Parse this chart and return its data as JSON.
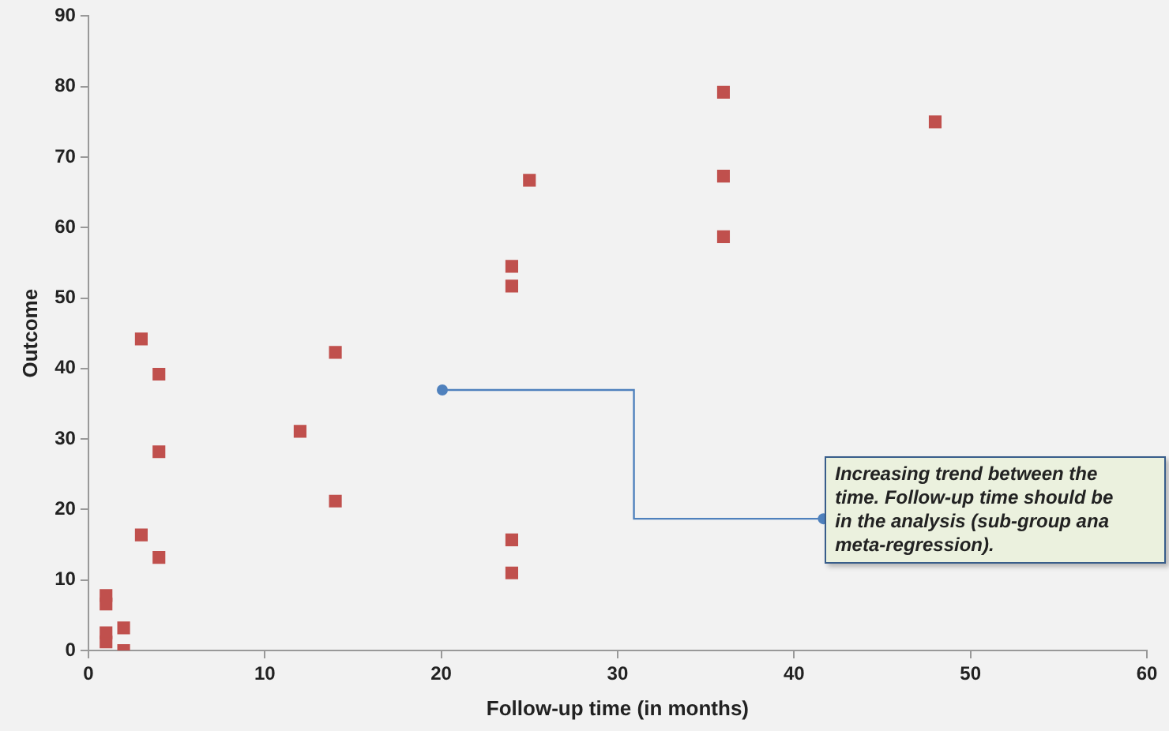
{
  "chart_data": {
    "type": "scatter",
    "xlabel": "Follow-up time (in months)",
    "ylabel": "Outcome",
    "x": [
      1,
      1,
      1,
      1,
      2,
      2,
      3,
      3,
      4,
      4,
      4,
      12,
      14,
      14,
      24,
      24,
      24,
      24,
      25,
      36,
      36,
      36,
      48
    ],
    "series": [
      {
        "color": "#c0504d",
        "values": [
          7.8,
          6.6,
          2.5,
          1.2,
          3.2,
          0,
          44.2,
          16.4,
          39.2,
          28.2,
          13.2,
          31.1,
          42.3,
          21.2,
          54.5,
          51.7,
          15.7,
          11,
          66.7,
          79.2,
          67.3,
          58.7,
          75
        ]
      }
    ],
    "xlim": [
      0,
      60
    ],
    "xticks": [
      0,
      10,
      20,
      30,
      40,
      50,
      60
    ],
    "ylim": [
      0,
      90
    ],
    "yticks": [
      0,
      10,
      20,
      30,
      40,
      50,
      60,
      70,
      80,
      90
    ],
    "grid": false,
    "legend": false,
    "marker": "square",
    "annotations": [
      "Increasing trend between the\ntime. Follow-up time should be\nin the analysis (sub-group ana\nmeta-regression)."
    ]
  }
}
